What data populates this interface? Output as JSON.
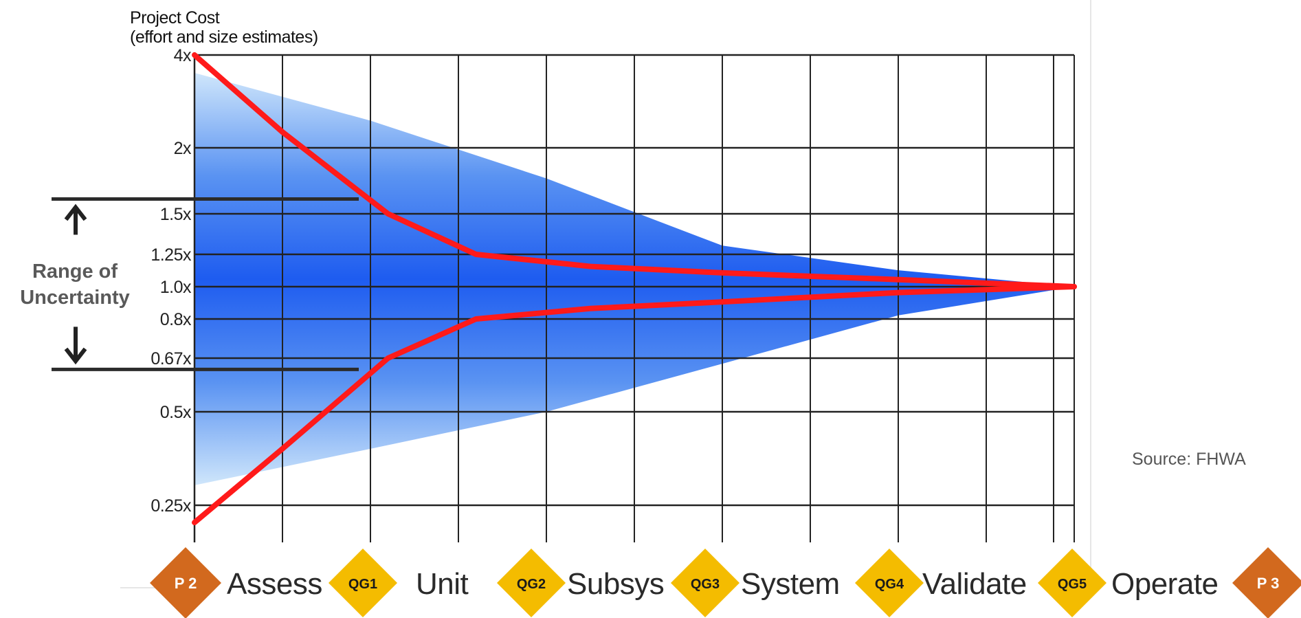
{
  "chart_data": {
    "type": "area",
    "title": "Project Cost",
    "subtitle": "(effort and size estimates)",
    "y_scale": "log",
    "y_ticks": [
      "4x",
      "2x",
      "1.5x",
      "1.25x",
      "1.0x",
      "0.8x",
      "0.67x",
      "0.5x",
      "0.25x"
    ],
    "y_tick_values": [
      4,
      2,
      1.5,
      1.25,
      1.0,
      0.8,
      0.67,
      0.5,
      0.25
    ],
    "x_range": [
      0,
      10
    ],
    "grid": true,
    "cone": {
      "name": "",
      "x": [
        0,
        2,
        4,
        6,
        8,
        10
      ],
      "upper": [
        3.5,
        2.45,
        1.75,
        1.3,
        1.12,
        1.0
      ],
      "lower": [
        0.29,
        0.38,
        0.5,
        0.65,
        0.82,
        1.0
      ]
    },
    "series": [
      {
        "name": "",
        "color": "#ff1a1a",
        "x": [
          0,
          1,
          2.2,
          3.2,
          4.5,
          6,
          8,
          10
        ],
        "values": [
          4.0,
          2.25,
          1.5,
          1.25,
          1.15,
          1.1,
          1.05,
          1.0
        ]
      },
      {
        "name": "",
        "color": "#ff1a1a",
        "x": [
          0,
          1,
          2.2,
          3.2,
          4.5,
          6,
          8,
          10
        ],
        "values": [
          0.22,
          0.38,
          0.67,
          0.8,
          0.86,
          0.9,
          0.96,
          1.0
        ]
      }
    ]
  },
  "range_annotation": {
    "label_line1": "Range of",
    "label_line2": "Uncertainty",
    "upper_value": 1.6,
    "lower_value": 0.63
  },
  "phases": [
    {
      "marker": "P 2",
      "kind": "p",
      "label": "Assess"
    },
    {
      "marker": "QG1",
      "kind": "qg",
      "label": "Unit"
    },
    {
      "marker": "QG2",
      "kind": "qg",
      "label": "Subsys"
    },
    {
      "marker": "QG3",
      "kind": "qg",
      "label": "System"
    },
    {
      "marker": "QG4",
      "kind": "qg",
      "label": "Validate"
    },
    {
      "marker": "QG5",
      "kind": "qg",
      "label": "Operate"
    },
    {
      "marker": "P 3",
      "kind": "p",
      "label": ""
    }
  ],
  "source": "Source: FHWA",
  "colors": {
    "cone_light": "#cfe6fb",
    "cone_dark": "#1e5cf0",
    "curve": "#ff1a1a",
    "grid": "#222222",
    "qg_diamond": "#f4bc00",
    "p_diamond": "#d2691e"
  }
}
